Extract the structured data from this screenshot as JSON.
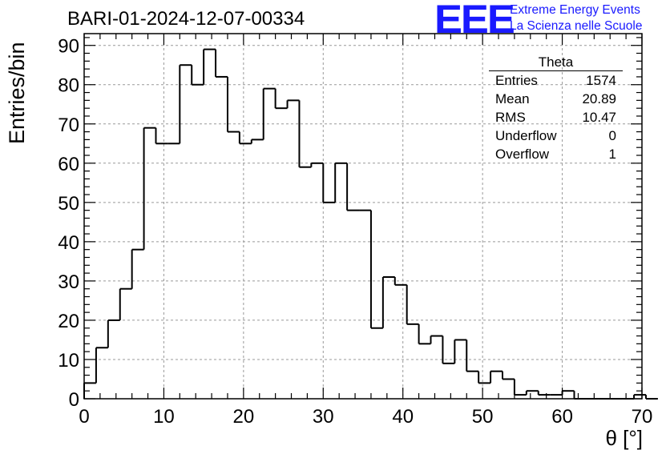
{
  "title": "BARI-01-2024-12-07-00334",
  "logo": {
    "mark": "EEE",
    "line1": "Extreme Energy Events",
    "line2": "La Scienza nelle Scuole",
    "color": "#1a1aff"
  },
  "stats": {
    "title": "Theta",
    "rows": [
      {
        "label": "Entries",
        "value": "1574"
      },
      {
        "label": "Mean",
        "value": "20.89"
      },
      {
        "label": "RMS",
        "value": "10.47"
      },
      {
        "label": "Underflow",
        "value": "0"
      },
      {
        "label": "Overflow",
        "value": "1"
      }
    ]
  },
  "chart_data": {
    "type": "bar",
    "histogram": true,
    "bin_width": 1.5,
    "bin_start": 0,
    "values": [
      4,
      13,
      20,
      28,
      38,
      69,
      65,
      65,
      85,
      80,
      89,
      82,
      68,
      65,
      66,
      79,
      74,
      76,
      59,
      60,
      50,
      60,
      48,
      48,
      18,
      31,
      29,
      19,
      14,
      16,
      9,
      15,
      7,
      4,
      7,
      5,
      1,
      2,
      1,
      1,
      2,
      0,
      0,
      0,
      0,
      0,
      1,
      0
    ],
    "xlabel": "θ [°]",
    "ylabel": "Entries/bin",
    "xlim": [
      0,
      70
    ],
    "ylim": [
      0,
      93
    ],
    "xticks": [
      0,
      10,
      20,
      30,
      40,
      50,
      60,
      70
    ],
    "yticks": [
      0,
      10,
      20,
      30,
      40,
      50,
      60,
      70,
      80,
      90
    ],
    "grid": true,
    "line_color": "#000000"
  }
}
